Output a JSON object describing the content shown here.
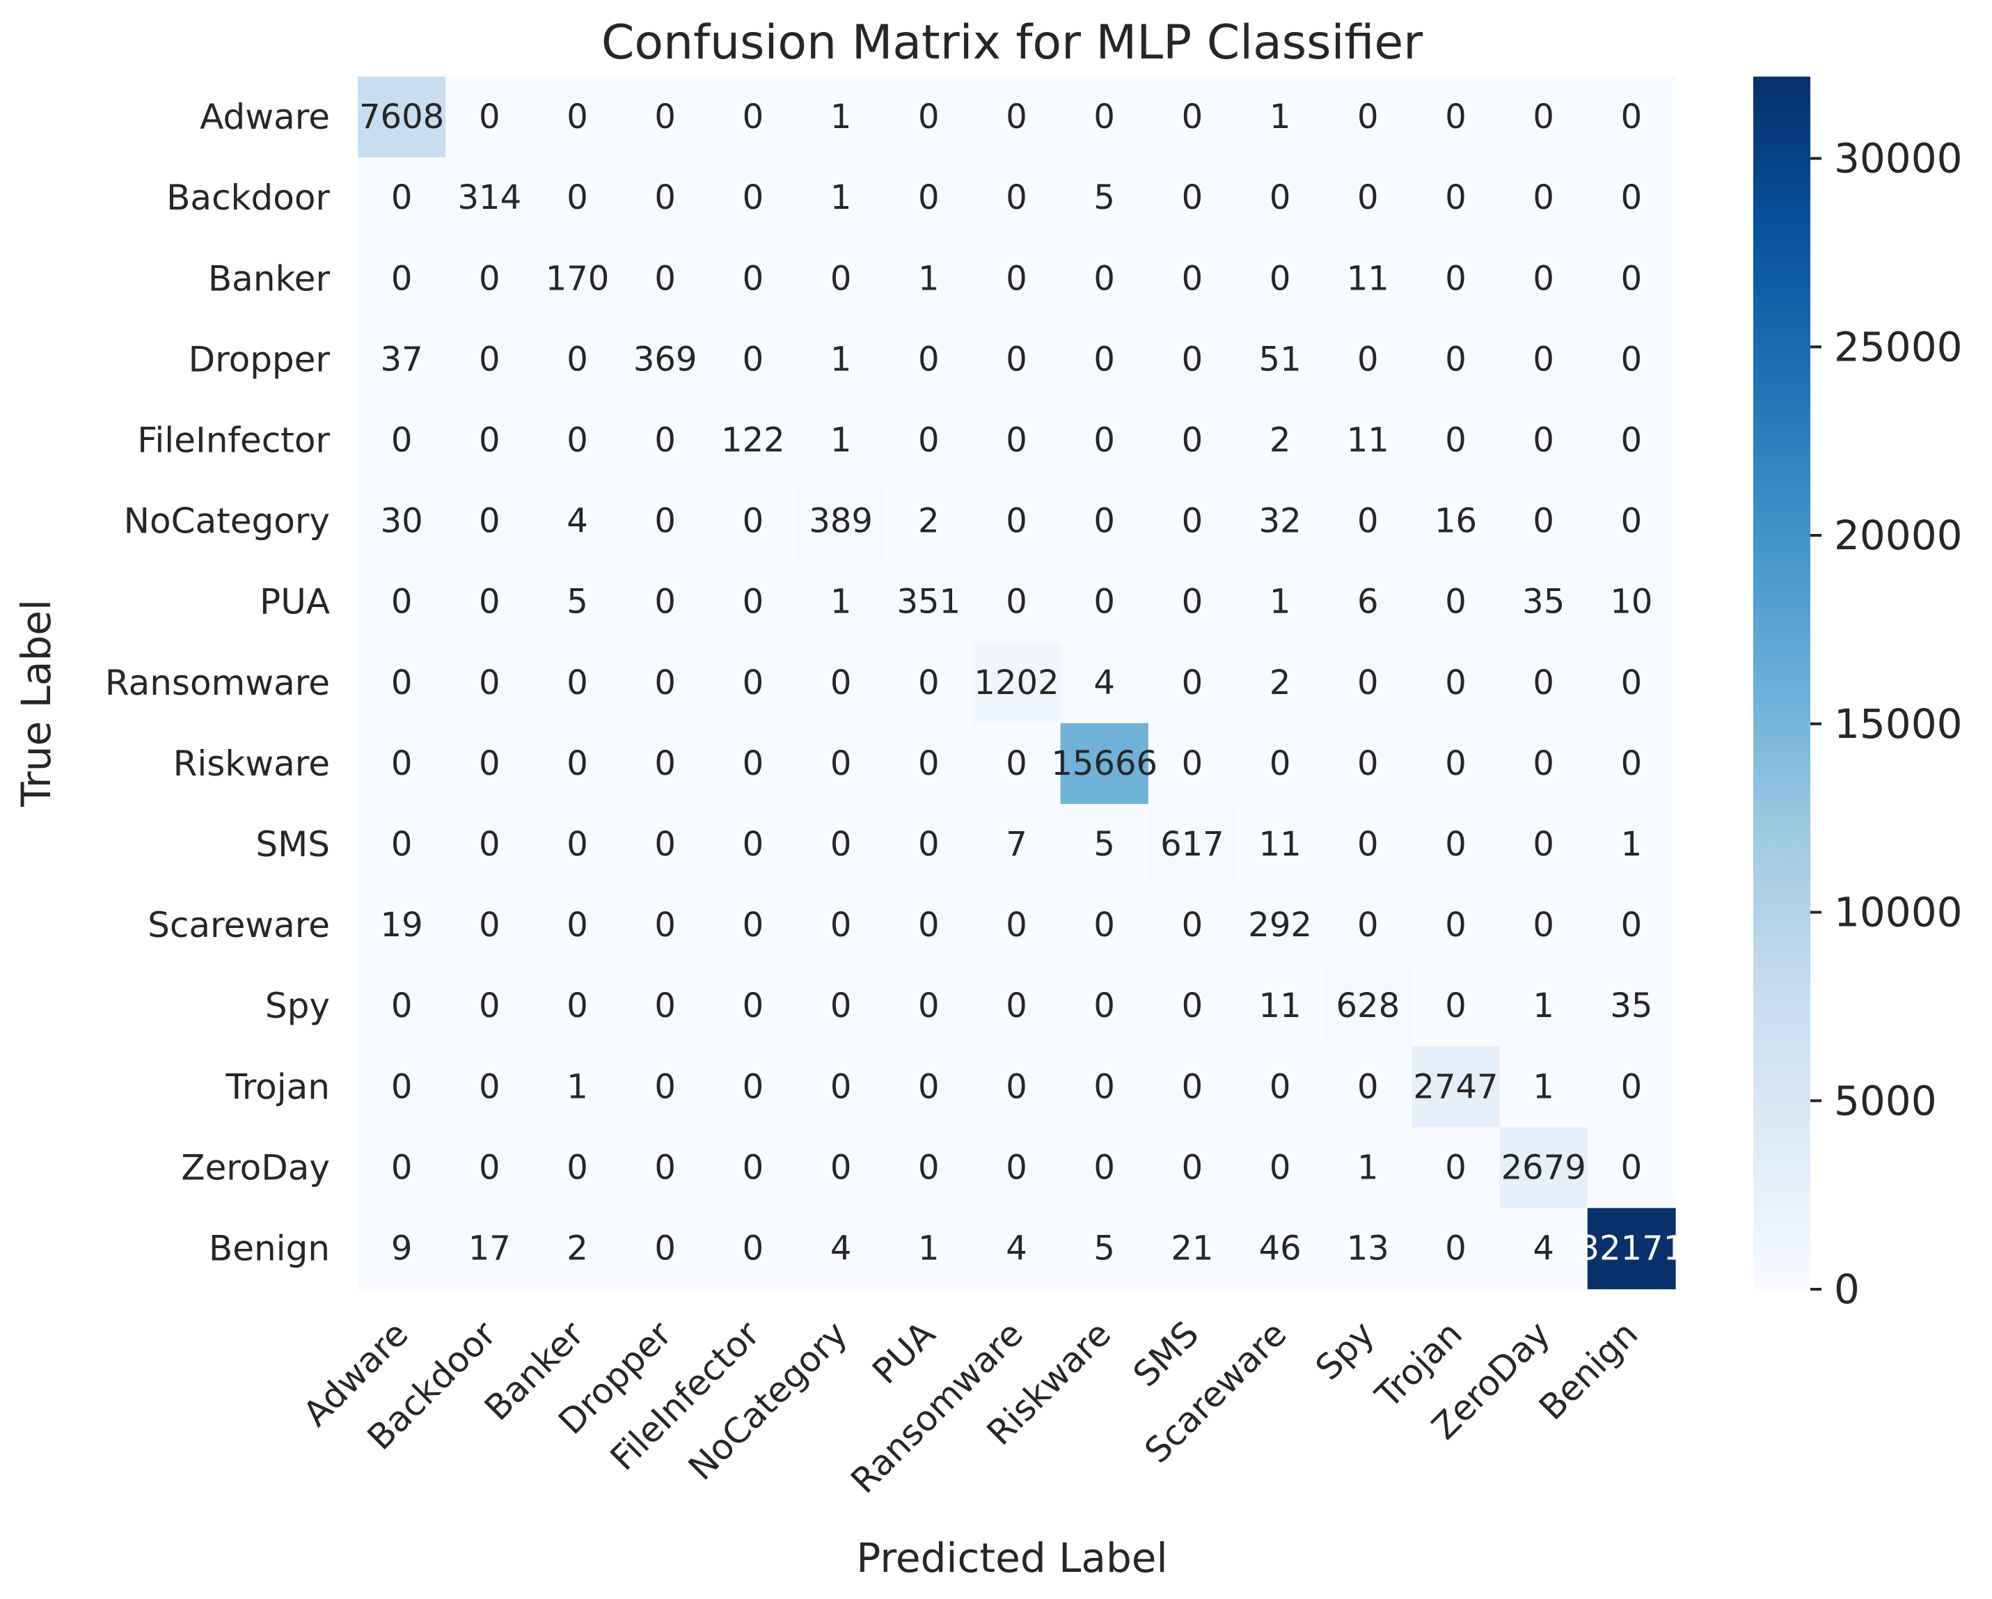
{
  "chart_data": {
    "type": "heatmap",
    "title": "Confusion Matrix for MLP Classifier",
    "xlabel": "Predicted Label",
    "ylabel": "True Label",
    "x_categories": [
      "Adware",
      "Backdoor",
      "Banker",
      "Dropper",
      "FileInfector",
      "NoCategory",
      "PUA",
      "Ransomware",
      "Riskware",
      "SMS",
      "Scareware",
      "Spy",
      "Trojan",
      "ZeroDay",
      "Benign"
    ],
    "y_categories": [
      "Adware",
      "Backdoor",
      "Banker",
      "Dropper",
      "FileInfector",
      "NoCategory",
      "PUA",
      "Ransomware",
      "Riskware",
      "SMS",
      "Scareware",
      "Spy",
      "Trojan",
      "ZeroDay",
      "Benign"
    ],
    "values": [
      [
        7608,
        0,
        0,
        0,
        0,
        1,
        0,
        0,
        0,
        0,
        1,
        0,
        0,
        0,
        0
      ],
      [
        0,
        314,
        0,
        0,
        0,
        1,
        0,
        0,
        5,
        0,
        0,
        0,
        0,
        0,
        0
      ],
      [
        0,
        0,
        170,
        0,
        0,
        0,
        1,
        0,
        0,
        0,
        0,
        11,
        0,
        0,
        0
      ],
      [
        37,
        0,
        0,
        369,
        0,
        1,
        0,
        0,
        0,
        0,
        51,
        0,
        0,
        0,
        0
      ],
      [
        0,
        0,
        0,
        0,
        122,
        1,
        0,
        0,
        0,
        0,
        2,
        11,
        0,
        0,
        0
      ],
      [
        30,
        0,
        4,
        0,
        0,
        389,
        2,
        0,
        0,
        0,
        32,
        0,
        16,
        0,
        0
      ],
      [
        0,
        0,
        5,
        0,
        0,
        1,
        351,
        0,
        0,
        0,
        1,
        6,
        0,
        35,
        10
      ],
      [
        0,
        0,
        0,
        0,
        0,
        0,
        0,
        1202,
        4,
        0,
        2,
        0,
        0,
        0,
        0
      ],
      [
        0,
        0,
        0,
        0,
        0,
        0,
        0,
        0,
        15666,
        0,
        0,
        0,
        0,
        0,
        0
      ],
      [
        0,
        0,
        0,
        0,
        0,
        0,
        0,
        7,
        5,
        617,
        11,
        0,
        0,
        0,
        1
      ],
      [
        19,
        0,
        0,
        0,
        0,
        0,
        0,
        0,
        0,
        0,
        292,
        0,
        0,
        0,
        0
      ],
      [
        0,
        0,
        0,
        0,
        0,
        0,
        0,
        0,
        0,
        0,
        11,
        628,
        0,
        1,
        35
      ],
      [
        0,
        0,
        1,
        0,
        0,
        0,
        0,
        0,
        0,
        0,
        0,
        0,
        2747,
        1,
        0
      ],
      [
        0,
        0,
        0,
        0,
        0,
        0,
        0,
        0,
        0,
        0,
        0,
        1,
        0,
        2679,
        0
      ],
      [
        9,
        17,
        2,
        0,
        0,
        4,
        1,
        4,
        5,
        21,
        46,
        13,
        0,
        4,
        32171
      ]
    ],
    "colormap": "Blues",
    "colorbar": {
      "min": 0,
      "max": 32171,
      "ticks": [
        0,
        5000,
        10000,
        15000,
        20000,
        25000,
        30000
      ]
    },
    "grid": false
  }
}
